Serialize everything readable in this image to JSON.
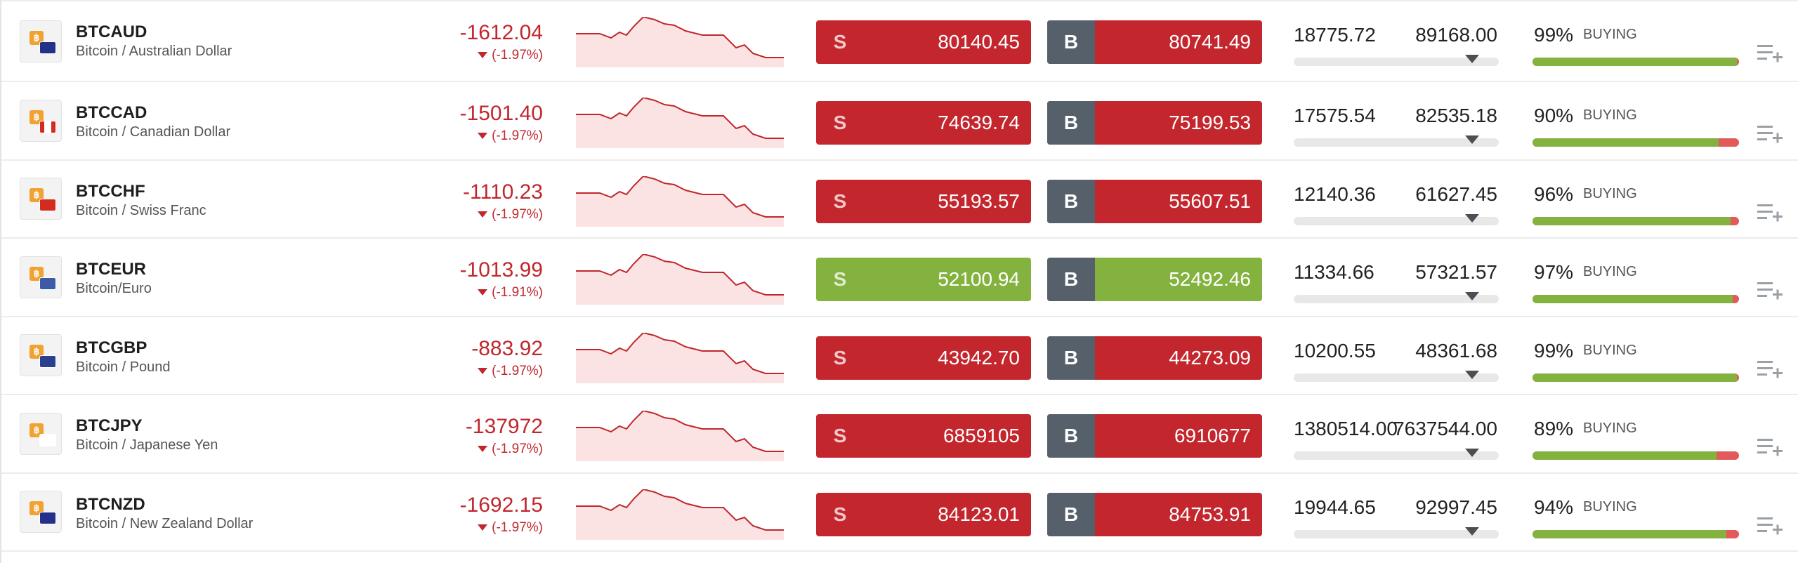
{
  "rows": [
    {
      "symbol": "BTCAUD",
      "name": "Bitcoin / Australian Dollar",
      "change": "-1612.04",
      "pct": "(-1.97%)",
      "sell_tag": "S",
      "sell": "80140.45",
      "buy_tag": "B",
      "buy": "80741.49",
      "low": "18775.72",
      "high": "89168.00",
      "sentiment": "99%",
      "sentiment_value": 99,
      "sentiment_label": "BUYING",
      "state": "red",
      "flag": "au"
    },
    {
      "symbol": "BTCCAD",
      "name": "Bitcoin / Canadian Dollar",
      "change": "-1501.40",
      "pct": "(-1.97%)",
      "sell_tag": "S",
      "sell": "74639.74",
      "buy_tag": "B",
      "buy": "75199.53",
      "low": "17575.54",
      "high": "82535.18",
      "sentiment": "90%",
      "sentiment_value": 90,
      "sentiment_label": "BUYING",
      "state": "red",
      "flag": "ca"
    },
    {
      "symbol": "BTCCHF",
      "name": "Bitcoin / Swiss Franc",
      "change": "-1110.23",
      "pct": "(-1.97%)",
      "sell_tag": "S",
      "sell": "55193.57",
      "buy_tag": "B",
      "buy": "55607.51",
      "low": "12140.36",
      "high": "61627.45",
      "sentiment": "96%",
      "sentiment_value": 96,
      "sentiment_label": "BUYING",
      "state": "red",
      "flag": "ch"
    },
    {
      "symbol": "BTCEUR",
      "name": "Bitcoin/Euro",
      "change": "-1013.99",
      "pct": "(-1.91%)",
      "sell_tag": "S",
      "sell": "52100.94",
      "buy_tag": "B",
      "buy": "52492.46",
      "low": "11334.66",
      "high": "57321.57",
      "sentiment": "97%",
      "sentiment_value": 97,
      "sentiment_label": "BUYING",
      "state": "green",
      "flag": "eu"
    },
    {
      "symbol": "BTCGBP",
      "name": "Bitcoin / Pound",
      "change": "-883.92",
      "pct": "(-1.97%)",
      "sell_tag": "S",
      "sell": "43942.70",
      "buy_tag": "B",
      "buy": "44273.09",
      "low": "10200.55",
      "high": "48361.68",
      "sentiment": "99%",
      "sentiment_value": 99,
      "sentiment_label": "BUYING",
      "state": "red",
      "flag": "gb"
    },
    {
      "symbol": "BTCJPY",
      "name": "Bitcoin / Japanese Yen",
      "change": "-137972",
      "pct": "(-1.97%)",
      "sell_tag": "S",
      "sell": "6859105",
      "buy_tag": "B",
      "buy": "6910677",
      "low": "1380514.00",
      "high": "7637544.00",
      "sentiment": "89%",
      "sentiment_value": 89,
      "sentiment_label": "BUYING",
      "state": "red",
      "flag": "jp"
    },
    {
      "symbol": "BTCNZD",
      "name": "Bitcoin / New Zealand Dollar",
      "change": "-1692.15",
      "pct": "(-1.97%)",
      "sell_tag": "S",
      "sell": "84123.01",
      "buy_tag": "B",
      "buy": "84753.91",
      "low": "19944.65",
      "high": "92997.45",
      "sentiment": "94%",
      "sentiment_value": 94,
      "sentiment_label": "BUYING",
      "state": "red",
      "flag": "nz"
    }
  ],
  "icons": {
    "coin": "bitcoin-icon",
    "more": "add-to-list-icon",
    "trend": "down-triangle-icon"
  },
  "colors": {
    "negative": "#c0272d",
    "sell_red": "#c3272d",
    "up_green": "#84b23f",
    "buy_tag": "#56606b",
    "sentiment_sell": "#e25a5a"
  }
}
